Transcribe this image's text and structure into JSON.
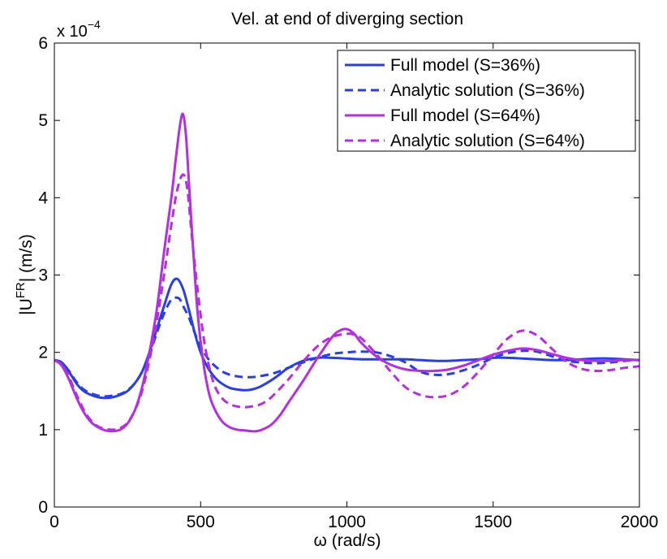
{
  "chart_data": {
    "type": "line",
    "title": "Vel. at end of diverging section",
    "xlabel": "ω (rad/s)",
    "ylabel_parts": {
      "prefix": "|U",
      "superscript": "FR",
      "suffix": "| (m/s)"
    },
    "y_multiplier": {
      "base": "x 10",
      "exponent": "−4"
    },
    "xlim": [
      0,
      2000
    ],
    "ylim": [
      0,
      6
    ],
    "x_ticks": [
      0,
      500,
      1000,
      1500,
      2000
    ],
    "x_tick_labels": [
      "0",
      "500",
      "1000",
      "1500",
      "2000"
    ],
    "y_ticks": [
      0,
      1,
      2,
      3,
      4,
      5,
      6
    ],
    "y_tick_labels": [
      "0",
      "1",
      "2",
      "3",
      "4",
      "5",
      "6"
    ],
    "grid": false,
    "legend_position": "top-right",
    "series": [
      {
        "name": "Full model (S=36%)",
        "color": "#2a3fe0",
        "style": "solid",
        "x": [
          0,
          25,
          50,
          75,
          100,
          125,
          150,
          175,
          200,
          225,
          250,
          275,
          300,
          325,
          350,
          375,
          400,
          420,
          440,
          460,
          480,
          500,
          525,
          550,
          575,
          600,
          625,
          650,
          675,
          700,
          725,
          750,
          775,
          800,
          850,
          900,
          950,
          1000,
          1050,
          1100,
          1150,
          1200,
          1250,
          1300,
          1350,
          1400,
          1450,
          1500,
          1550,
          1600,
          1650,
          1700,
          1750,
          1800,
          1850,
          1900,
          1950,
          2000
        ],
        "y": [
          1.9,
          1.87,
          1.75,
          1.6,
          1.5,
          1.45,
          1.42,
          1.41,
          1.42,
          1.45,
          1.5,
          1.6,
          1.75,
          2.0,
          2.3,
          2.6,
          2.88,
          2.95,
          2.82,
          2.55,
          2.25,
          2.0,
          1.8,
          1.67,
          1.59,
          1.54,
          1.52,
          1.51,
          1.52,
          1.55,
          1.6,
          1.66,
          1.73,
          1.8,
          1.89,
          1.93,
          1.93,
          1.92,
          1.91,
          1.91,
          1.91,
          1.91,
          1.9,
          1.89,
          1.89,
          1.9,
          1.91,
          1.93,
          1.93,
          1.92,
          1.91,
          1.9,
          1.9,
          1.91,
          1.92,
          1.92,
          1.91,
          1.9
        ]
      },
      {
        "name": "Analytic solution (S=36%)",
        "color": "#2a3fe0",
        "style": "dashed",
        "x": [
          0,
          25,
          50,
          75,
          100,
          125,
          150,
          175,
          200,
          225,
          250,
          275,
          300,
          325,
          350,
          375,
          400,
          425,
          440,
          460,
          480,
          500,
          525,
          550,
          575,
          600,
          625,
          650,
          675,
          700,
          750,
          800,
          850,
          900,
          950,
          1000,
          1050,
          1100,
          1150,
          1200,
          1250,
          1300,
          1350,
          1400,
          1450,
          1500,
          1550,
          1600,
          1650,
          1700,
          1750,
          1800,
          1850,
          1900,
          1950,
          2000
        ],
        "y": [
          1.9,
          1.87,
          1.76,
          1.62,
          1.52,
          1.47,
          1.44,
          1.43,
          1.44,
          1.46,
          1.51,
          1.6,
          1.75,
          1.97,
          2.25,
          2.5,
          2.68,
          2.7,
          2.6,
          2.45,
          2.25,
          2.08,
          1.92,
          1.82,
          1.75,
          1.71,
          1.69,
          1.68,
          1.68,
          1.69,
          1.73,
          1.8,
          1.87,
          1.93,
          1.98,
          2.0,
          2.01,
          2.0,
          1.95,
          1.87,
          1.75,
          1.71,
          1.72,
          1.77,
          1.84,
          1.93,
          1.99,
          2.02,
          2.01,
          1.95,
          1.89,
          1.87,
          1.86,
          1.87,
          1.89,
          1.9
        ]
      },
      {
        "name": "Full model (S=64%)",
        "color": "#b230e0",
        "style": "solid",
        "x": [
          0,
          25,
          50,
          75,
          100,
          125,
          150,
          175,
          200,
          225,
          250,
          275,
          300,
          325,
          350,
          375,
          400,
          415,
          430,
          440,
          450,
          460,
          475,
          490,
          510,
          530,
          550,
          575,
          600,
          625,
          650,
          675,
          690,
          710,
          740,
          770,
          800,
          850,
          900,
          950,
          975,
          1000,
          1025,
          1050,
          1100,
          1150,
          1200,
          1250,
          1300,
          1350,
          1400,
          1450,
          1500,
          1550,
          1600,
          1650,
          1700,
          1750,
          1800,
          1850,
          1900,
          1950,
          2000
        ],
        "y": [
          1.9,
          1.83,
          1.65,
          1.42,
          1.23,
          1.1,
          1.03,
          0.99,
          0.98,
          1.0,
          1.08,
          1.25,
          1.55,
          2.0,
          2.55,
          3.3,
          4.0,
          4.5,
          4.95,
          5.08,
          4.8,
          4.2,
          3.3,
          2.5,
          1.85,
          1.45,
          1.25,
          1.1,
          1.03,
          1.0,
          0.99,
          0.98,
          0.98,
          1.0,
          1.06,
          1.18,
          1.35,
          1.63,
          1.93,
          2.2,
          2.28,
          2.3,
          2.24,
          2.12,
          1.95,
          1.84,
          1.78,
          1.76,
          1.76,
          1.78,
          1.83,
          1.9,
          1.97,
          2.02,
          2.05,
          2.03,
          1.98,
          1.93,
          1.9,
          1.89,
          1.89,
          1.9,
          1.9
        ]
      },
      {
        "name": "Analytic solution (S=64%)",
        "color": "#b230e0",
        "style": "dashed",
        "x": [
          0,
          25,
          50,
          75,
          100,
          125,
          150,
          175,
          200,
          225,
          250,
          275,
          300,
          325,
          350,
          375,
          400,
          420,
          440,
          455,
          470,
          490,
          510,
          530,
          550,
          575,
          600,
          625,
          650,
          675,
          700,
          725,
          750,
          800,
          850,
          900,
          950,
          1000,
          1025,
          1050,
          1100,
          1150,
          1200,
          1250,
          1300,
          1350,
          1400,
          1450,
          1500,
          1550,
          1600,
          1650,
          1700,
          1750,
          1800,
          1850,
          1900,
          1950,
          2000
        ],
        "y": [
          1.9,
          1.84,
          1.68,
          1.46,
          1.26,
          1.12,
          1.04,
          1.01,
          1.0,
          1.02,
          1.09,
          1.25,
          1.5,
          1.9,
          2.4,
          3.0,
          3.65,
          4.1,
          4.3,
          4.1,
          3.5,
          2.8,
          2.2,
          1.8,
          1.55,
          1.4,
          1.33,
          1.3,
          1.29,
          1.3,
          1.32,
          1.37,
          1.45,
          1.65,
          1.88,
          2.08,
          2.2,
          2.24,
          2.23,
          2.18,
          1.98,
          1.75,
          1.55,
          1.45,
          1.42,
          1.45,
          1.56,
          1.75,
          1.97,
          2.18,
          2.28,
          2.22,
          2.05,
          1.88,
          1.79,
          1.76,
          1.77,
          1.8,
          1.82
        ]
      }
    ]
  }
}
